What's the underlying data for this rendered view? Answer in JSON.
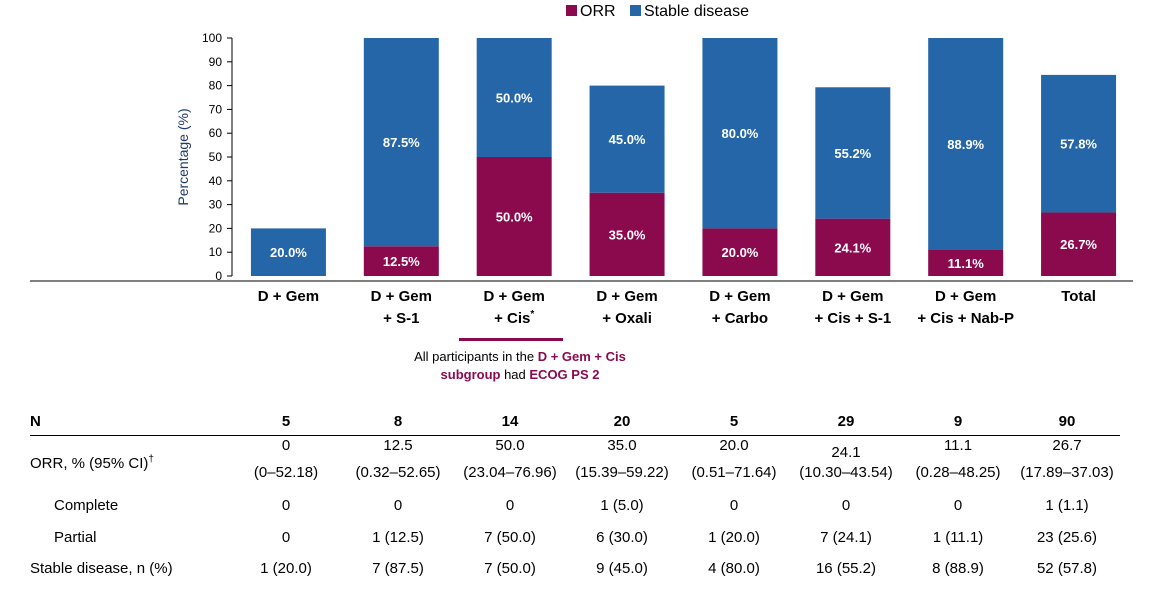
{
  "chart_data": {
    "type": "bar",
    "stacked": true,
    "categories": [
      "D + Gem",
      "D + Gem + S-1",
      "D + Gem + Cis*",
      "D + Gem + Oxali",
      "D + Gem + Carbo",
      "D + Gem + Cis + S-1",
      "D + Gem + Cis + Nab-P",
      "Total"
    ],
    "category_lines": [
      [
        "D + Gem"
      ],
      [
        "D + Gem",
        "+ S-1"
      ],
      [
        "D + Gem",
        "+ Cis"
      ],
      [
        "D + Gem",
        "+ Oxali"
      ],
      [
        "D + Gem",
        "+ Carbo"
      ],
      [
        "D + Gem",
        "+ Cis + S-1"
      ],
      [
        "D + Gem",
        "+ Cis + Nab-P"
      ],
      [
        "Total"
      ]
    ],
    "category_superscripts": [
      "",
      "",
      "*",
      "",
      "",
      "",
      "",
      ""
    ],
    "series": [
      {
        "name": "ORR",
        "color": "#8b0a4e",
        "values": [
          0,
          12.5,
          50.0,
          35.0,
          20.0,
          24.1,
          11.1,
          26.7
        ],
        "labels": [
          "",
          "12.5%",
          "50.0%",
          "35.0%",
          "20.0%",
          "24.1%",
          "11.1%",
          "26.7%"
        ]
      },
      {
        "name": "Stable disease",
        "color": "#2566a8",
        "values": [
          20.0,
          87.5,
          50.0,
          45.0,
          80.0,
          55.2,
          88.9,
          57.8
        ],
        "labels": [
          "20.0%",
          "87.5%",
          "50.0%",
          "45.0%",
          "80.0%",
          "55.2%",
          "88.9%",
          "57.8%"
        ]
      }
    ],
    "ylabel": "Percentage (%)",
    "ylim": [
      0,
      100
    ],
    "yticks": [
      0,
      10,
      20,
      30,
      40,
      50,
      60,
      70,
      80,
      90,
      100
    ],
    "legend": "top-center"
  },
  "note": {
    "line1_prefix": "All participants in the ",
    "line1_highlight": "D + Gem + Cis",
    "line2_highlight": "subgroup",
    "line2_mid": " had ",
    "line2_end_highlight": "ECOG PS 2"
  },
  "table": {
    "n_label": "N",
    "n_values": [
      "5",
      "8",
      "14",
      "20",
      "5",
      "29",
      "9",
      "90"
    ],
    "orr_label": "ORR, % (95% CI)",
    "orr_label_sup": "†",
    "orr_values": [
      "0",
      "12.5",
      "50.0",
      "35.0",
      "20.0",
      "24.1",
      "11.1",
      "26.7"
    ],
    "orr_ci": [
      "(0–52.18)",
      "(0.32–52.65)",
      "(23.04–76.96)",
      "(15.39–59.22)",
      "(0.51–71.64)",
      "(10.30–43.54)",
      "(0.28–48.25)",
      "(17.89–37.03)"
    ],
    "complete_label": "Complete",
    "complete_values": [
      "0",
      "0",
      "0",
      "1 (5.0)",
      "0",
      "0",
      "0",
      "1 (1.1)"
    ],
    "partial_label": "Partial",
    "partial_values": [
      "0",
      "1 (12.5)",
      "7 (50.0)",
      "6 (30.0)",
      "1 (20.0)",
      "7 (24.1)",
      "1 (11.1)",
      "23 (25.6)"
    ],
    "sd_label": "Stable disease, n (%)",
    "sd_values": [
      "1 (20.0)",
      "7 (87.5)",
      "7 (50.0)",
      "9 (45.0)",
      "4 (80.0)",
      "16 (55.2)",
      "8 (88.9)",
      "52 (57.8)"
    ]
  }
}
